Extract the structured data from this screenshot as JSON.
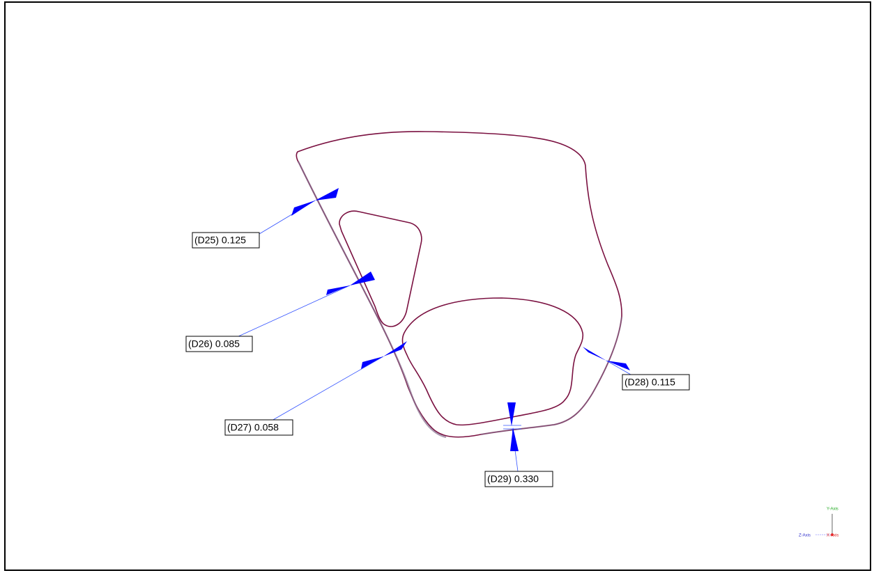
{
  "dimensions": [
    {
      "label": "(D25) 0.125"
    },
    {
      "label": "(D26) 0.085"
    },
    {
      "label": "(D27) 0.058"
    },
    {
      "label": "(D28) 0.115"
    },
    {
      "label": "(D29) 0.330"
    }
  ],
  "axes": {
    "y": "Y-Axis",
    "z": "Z-Axis",
    "x": "X-Axis"
  }
}
